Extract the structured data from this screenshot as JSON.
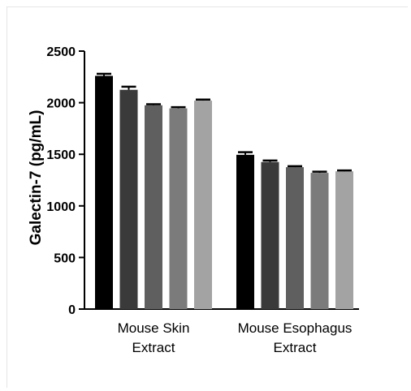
{
  "chart_data": {
    "type": "bar",
    "title": "",
    "ylabel": "Galectin-7 (pg/mL)",
    "xlabel": "",
    "ylim": [
      0,
      2500
    ],
    "yticks": [
      "0",
      "500",
      "1000",
      "1500",
      "2000",
      "2500"
    ],
    "groups": [
      {
        "label_lines": [
          "Mouse Skin",
          "Extract"
        ],
        "values": [
          2260,
          2125,
          1975,
          1945,
          2020
        ],
        "errors": [
          20,
          30,
          10,
          12,
          10
        ]
      },
      {
        "label_lines": [
          "Mouse Esophagus",
          "Extract"
        ],
        "values": [
          1495,
          1425,
          1375,
          1320,
          1335
        ],
        "errors": [
          25,
          15,
          10,
          12,
          8
        ]
      }
    ],
    "bar_colors": [
      "#000000",
      "#3a3a3a",
      "#5f5f5f",
      "#7b7b7b",
      "#a3a3a3"
    ],
    "grid": false,
    "legend": "none"
  }
}
